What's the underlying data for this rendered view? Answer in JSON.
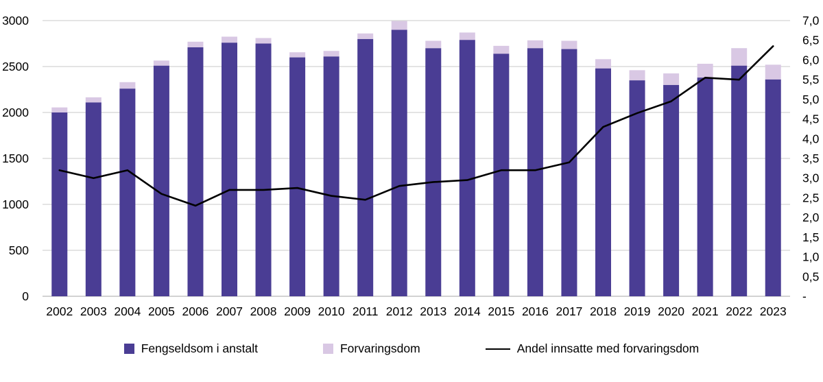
{
  "chart_data": {
    "type": "bar",
    "subtype": "stacked-bars-with-line",
    "categories": [
      "2002",
      "2003",
      "2004",
      "2005",
      "2006",
      "2007",
      "2008",
      "2009",
      "2010",
      "2011",
      "2012",
      "2013",
      "2014",
      "2015",
      "2016",
      "2017",
      "2018",
      "2019",
      "2020",
      "2021",
      "2022",
      "2023"
    ],
    "series": [
      {
        "name": "Fengseldsom i anstalt",
        "type": "bar",
        "axis": "left",
        "color": "#4a3d94",
        "values": [
          2000,
          2110,
          2260,
          2510,
          2710,
          2760,
          2750,
          2600,
          2610,
          2800,
          2900,
          2700,
          2790,
          2640,
          2700,
          2690,
          2480,
          2350,
          2300,
          2380,
          2510,
          2360
        ]
      },
      {
        "name": "Forvaringsdom",
        "type": "bar",
        "axis": "left",
        "color": "#d9c8e4",
        "values": [
          55,
          55,
          70,
          55,
          60,
          65,
          60,
          55,
          60,
          60,
          95,
          80,
          80,
          85,
          85,
          90,
          100,
          110,
          125,
          150,
          190,
          160
        ]
      },
      {
        "name": "Andel innsatte med forvaringsdom",
        "type": "line",
        "axis": "right",
        "color": "#000000",
        "values": [
          3.2,
          3.0,
          3.2,
          2.6,
          2.3,
          2.7,
          2.7,
          2.75,
          2.55,
          2.45,
          2.8,
          2.9,
          2.95,
          3.2,
          3.2,
          3.4,
          4.3,
          4.65,
          4.95,
          5.55,
          5.5,
          6.35
        ]
      }
    ],
    "left_axis": {
      "min": 0,
      "max": 3000,
      "step": 500,
      "tick_labels": [
        "0",
        "500",
        "1000",
        "1500",
        "2000",
        "2500",
        "3000"
      ]
    },
    "right_axis": {
      "min": 0,
      "max": 7,
      "step": 0.5,
      "tick_labels": [
        "-",
        "0,5",
        "1,0",
        "1,5",
        "2,0",
        "2,5",
        "3,0",
        "3,5",
        "4,0",
        "4,5",
        "5,0",
        "5,5",
        "6,0",
        "6,5",
        "7,0"
      ]
    },
    "grid": true,
    "gridline_color": "#c9c9c9",
    "axis_line_color": "#a6a6a6",
    "legend_position": "bottom",
    "title": "",
    "xlabel": "",
    "ylabel": ""
  }
}
